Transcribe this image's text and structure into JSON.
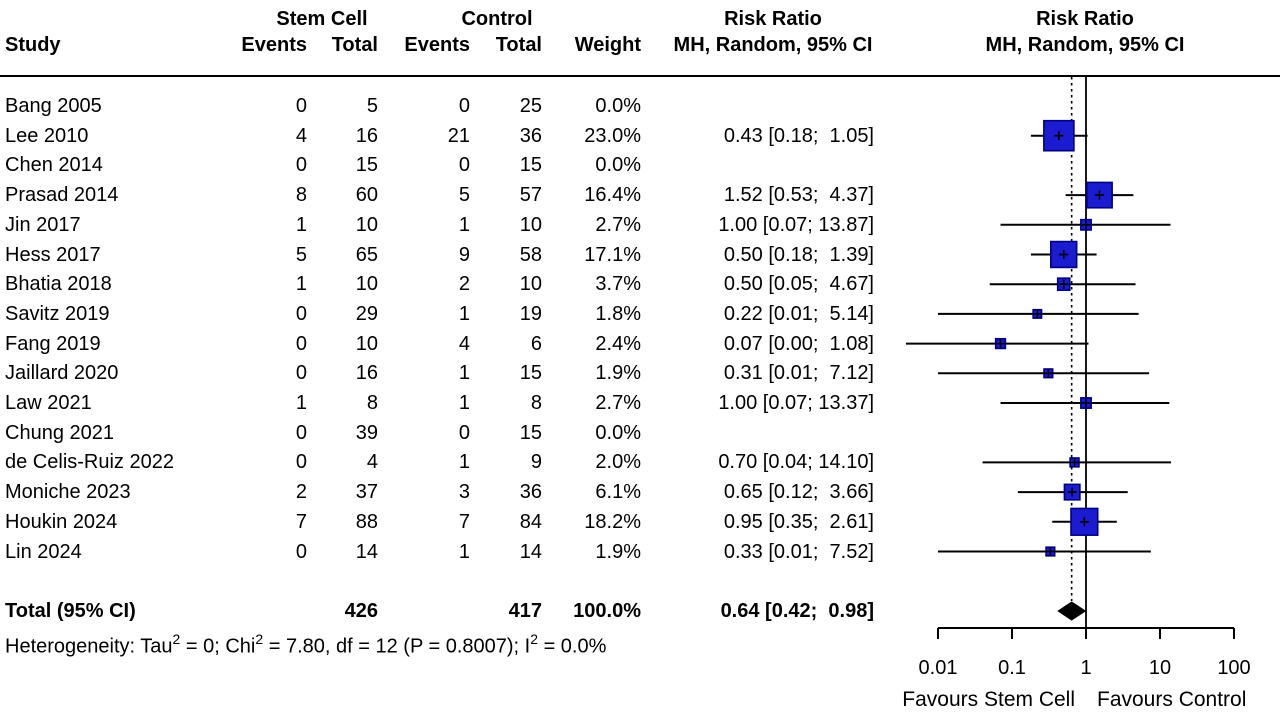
{
  "header": {
    "study": "Study",
    "group1_title": "Stem Cell",
    "group2_title": "Control",
    "events": "Events",
    "total": "Total",
    "weight": "Weight",
    "rr_col_line1": "Risk Ratio",
    "rr_col_line2": "MH, Random, 95% CI",
    "plot_col_line1": "Risk Ratio",
    "plot_col_line2": "MH, Random, 95% CI"
  },
  "footer": {
    "total_label": "Total (95% CI)",
    "total_n1": "426",
    "total_n2": "417",
    "total_weight": "100.0%",
    "total_rr_text": "0.64 [0.42;  0.98]",
    "heterogeneity_segments": [
      {
        "text": "Heterogeneity: Tau"
      },
      {
        "sup": "2"
      },
      {
        "text": " = 0; Chi"
      },
      {
        "sup": "2"
      },
      {
        "text": " = 7.80, df = 12 (P = 0.8007); I"
      },
      {
        "sup": "2"
      },
      {
        "text": " = 0.0%"
      }
    ],
    "favours_left": "Favours Stem Cell",
    "favours_right": "Favours Control"
  },
  "chart_data": {
    "type": "forest",
    "effect_measure": "Risk Ratio",
    "model": "MH, Random, 95% CI",
    "x_scale": "log10",
    "x_ticks": [
      0.01,
      0.1,
      1,
      10,
      100
    ],
    "x_tick_labels": [
      "0.01",
      "0.1",
      "1",
      "10",
      "100"
    ],
    "null_line": 1,
    "pooled_line": 0.64,
    "studies": [
      {
        "name": "Bang 2005",
        "events1": "0",
        "total1": "5",
        "events2": "0",
        "total2": "25",
        "weight_label": "0.0%",
        "weight_pct": 0.0,
        "rr": null,
        "ci_low": null,
        "ci_high": null,
        "rr_text": ""
      },
      {
        "name": "Lee 2010",
        "events1": "4",
        "total1": "16",
        "events2": "21",
        "total2": "36",
        "weight_label": "23.0%",
        "weight_pct": 23.0,
        "rr": 0.43,
        "ci_low": 0.18,
        "ci_high": 1.05,
        "rr_text": "0.43 [0.18;  1.05]"
      },
      {
        "name": "Chen 2014",
        "events1": "0",
        "total1": "15",
        "events2": "0",
        "total2": "15",
        "weight_label": "0.0%",
        "weight_pct": 0.0,
        "rr": null,
        "ci_low": null,
        "ci_high": null,
        "rr_text": ""
      },
      {
        "name": "Prasad 2014",
        "events1": "8",
        "total1": "60",
        "events2": "5",
        "total2": "57",
        "weight_label": "16.4%",
        "weight_pct": 16.4,
        "rr": 1.52,
        "ci_low": 0.53,
        "ci_high": 4.37,
        "rr_text": "1.52 [0.53;  4.37]"
      },
      {
        "name": "Jin 2017",
        "events1": "1",
        "total1": "10",
        "events2": "1",
        "total2": "10",
        "weight_label": "2.7%",
        "weight_pct": 2.7,
        "rr": 1.0,
        "ci_low": 0.07,
        "ci_high": 13.87,
        "rr_text": "1.00 [0.07; 13.87]"
      },
      {
        "name": "Hess 2017",
        "events1": "5",
        "total1": "65",
        "events2": "9",
        "total2": "58",
        "weight_label": "17.1%",
        "weight_pct": 17.1,
        "rr": 0.5,
        "ci_low": 0.18,
        "ci_high": 1.39,
        "rr_text": "0.50 [0.18;  1.39]"
      },
      {
        "name": "Bhatia 2018",
        "events1": "1",
        "total1": "10",
        "events2": "2",
        "total2": "10",
        "weight_label": "3.7%",
        "weight_pct": 3.7,
        "rr": 0.5,
        "ci_low": 0.05,
        "ci_high": 4.67,
        "rr_text": "0.50 [0.05;  4.67]"
      },
      {
        "name": "Savitz 2019",
        "events1": "0",
        "total1": "29",
        "events2": "1",
        "total2": "19",
        "weight_label": "1.8%",
        "weight_pct": 1.8,
        "rr": 0.22,
        "ci_low": 0.01,
        "ci_high": 5.14,
        "rr_text": "0.22 [0.01;  5.14]"
      },
      {
        "name": "Fang 2019",
        "events1": "0",
        "total1": "10",
        "events2": "4",
        "total2": "6",
        "weight_label": "2.4%",
        "weight_pct": 2.4,
        "rr": 0.07,
        "ci_low": 0.0,
        "ci_high": 1.08,
        "rr_text": "0.07 [0.00;  1.08]"
      },
      {
        "name": "Jaillard 2020",
        "events1": "0",
        "total1": "16",
        "events2": "1",
        "total2": "15",
        "weight_label": "1.9%",
        "weight_pct": 1.9,
        "rr": 0.31,
        "ci_low": 0.01,
        "ci_high": 7.12,
        "rr_text": "0.31 [0.01;  7.12]"
      },
      {
        "name": "Law 2021",
        "events1": "1",
        "total1": "8",
        "events2": "1",
        "total2": "8",
        "weight_label": "2.7%",
        "weight_pct": 2.7,
        "rr": 1.0,
        "ci_low": 0.07,
        "ci_high": 13.37,
        "rr_text": "1.00 [0.07; 13.37]"
      },
      {
        "name": "Chung 2021",
        "events1": "0",
        "total1": "39",
        "events2": "0",
        "total2": "15",
        "weight_label": "0.0%",
        "weight_pct": 0.0,
        "rr": null,
        "ci_low": null,
        "ci_high": null,
        "rr_text": ""
      },
      {
        "name": "de Celis-Ruiz 2022",
        "events1": "0",
        "total1": "4",
        "events2": "1",
        "total2": "9",
        "weight_label": "2.0%",
        "weight_pct": 2.0,
        "rr": 0.7,
        "ci_low": 0.04,
        "ci_high": 14.1,
        "rr_text": "0.70 [0.04; 14.10]"
      },
      {
        "name": "Moniche 2023",
        "events1": "2",
        "total1": "37",
        "events2": "3",
        "total2": "36",
        "weight_label": "6.1%",
        "weight_pct": 6.1,
        "rr": 0.65,
        "ci_low": 0.12,
        "ci_high": 3.66,
        "rr_text": "0.65 [0.12;  3.66]"
      },
      {
        "name": "Houkin 2024",
        "events1": "7",
        "total1": "88",
        "events2": "7",
        "total2": "84",
        "weight_label": "18.2%",
        "weight_pct": 18.2,
        "rr": 0.95,
        "ci_low": 0.35,
        "ci_high": 2.61,
        "rr_text": "0.95 [0.35;  2.61]"
      },
      {
        "name": "Lin 2024",
        "events1": "0",
        "total1": "14",
        "events2": "1",
        "total2": "14",
        "weight_label": "1.9%",
        "weight_pct": 1.9,
        "rr": 0.33,
        "ci_low": 0.01,
        "ci_high": 7.52,
        "rr_text": "0.33 [0.01;  7.52]"
      }
    ],
    "total": {
      "rr": 0.64,
      "ci_low": 0.42,
      "ci_high": 0.98
    },
    "heterogeneity": {
      "tau2": "0",
      "chi2": "7.80",
      "df": "12",
      "p": "0.8007",
      "i2": "0.0%"
    },
    "colors": {
      "square_fill": "#1b1bd0",
      "square_border": "#000080",
      "diamond": "#000000",
      "lines": "#000000"
    }
  }
}
